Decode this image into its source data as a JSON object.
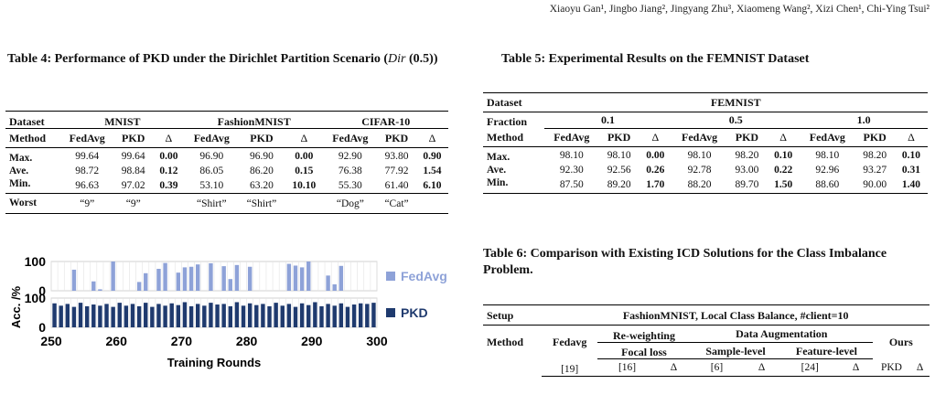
{
  "header": {
    "authors": "Xiaoyu Gan¹, Jingbo Jiang², Jingyang Zhu³, Xiaomeng Wang², Xizi Chen¹, Chi-Ying Tsui²"
  },
  "table4": {
    "caption_main": "Table 4: Performance of PKD under the Dirichlet Partition Scenario (",
    "caption_dir": "Dir",
    "caption_tail": " (0.5))",
    "groups": [
      "Dataset",
      "MNIST",
      "FashionMNIST",
      "CIFAR-10"
    ],
    "columns": [
      "Method",
      "FedAvg",
      "PKD",
      "Δ",
      "FedAvg",
      "PKD",
      "Δ",
      "FedAvg",
      "PKD",
      "Δ"
    ],
    "rows": [
      [
        "Max.",
        "99.64",
        "99.64",
        "0.00",
        "96.90",
        "96.90",
        "0.00",
        "92.90",
        "93.80",
        "0.90"
      ],
      [
        "Ave.",
        "98.72",
        "98.84",
        "0.12",
        "86.05",
        "86.20",
        "0.15",
        "76.38",
        "77.92",
        "1.54"
      ],
      [
        "Min.",
        "96.63",
        "97.02",
        "0.39",
        "53.10",
        "63.20",
        "10.10",
        "55.30",
        "61.40",
        "6.10"
      ]
    ],
    "worst": [
      "Worst",
      "“9”",
      "“9”",
      "",
      "“Shirt”",
      "“Shirt”",
      "",
      "“Dog”",
      "“Cat”",
      ""
    ]
  },
  "chart_data": {
    "type": "bar",
    "xlabel": "Training Rounds",
    "ylabel": "Acc. /%",
    "x_ticks": [
      250,
      260,
      270,
      280,
      290,
      300
    ],
    "xlim": [
      250,
      300
    ],
    "ylim": [
      0,
      100
    ],
    "y_ticks": [
      0,
      100
    ],
    "x": [
      250,
      251,
      252,
      253,
      254,
      255,
      256,
      257,
      258,
      259,
      260,
      261,
      262,
      263,
      264,
      265,
      266,
      267,
      268,
      269,
      270,
      271,
      272,
      273,
      274,
      275,
      276,
      277,
      278,
      279,
      280,
      281,
      282,
      283,
      284,
      285,
      286,
      287,
      288,
      289,
      290,
      291,
      292,
      293,
      294,
      295,
      296,
      297,
      298,
      299
    ],
    "series": [
      {
        "name": "FedAvg",
        "color": "#8ea2d8",
        "values": [
          0,
          0,
          0,
          72,
          0,
          0,
          32,
          5,
          0,
          100,
          0,
          0,
          0,
          30,
          60,
          0,
          75,
          95,
          0,
          62,
          80,
          82,
          90,
          0,
          94,
          0,
          84,
          40,
          88,
          0,
          82,
          0,
          0,
          0,
          0,
          0,
          92,
          86,
          80,
          100,
          0,
          0,
          52,
          22,
          85,
          0,
          0,
          0,
          0,
          0
        ]
      },
      {
        "name": "PKD",
        "color": "#1f3a6e",
        "values": [
          82,
          74,
          80,
          70,
          84,
          72,
          78,
          74,
          80,
          70,
          84,
          74,
          80,
          72,
          84,
          70,
          80,
          74,
          82,
          76,
          86,
          72,
          80,
          74,
          84,
          78,
          80,
          72,
          86,
          74,
          82,
          76,
          80,
          72,
          84,
          74,
          80,
          70,
          82,
          76,
          86,
          72,
          80,
          74,
          82,
          70,
          78,
          82,
          80,
          84
        ]
      }
    ]
  },
  "table5": {
    "caption": "Table 5: Experimental Results on the FEMNIST Dataset",
    "dataset_label": "Dataset",
    "dataset_name": "FEMNIST",
    "fraction_label": "Fraction",
    "fractions": [
      "0.1",
      "0.5",
      "1.0"
    ],
    "columns": [
      "Method",
      "FedAvg",
      "PKD",
      "Δ",
      "FedAvg",
      "PKD",
      "Δ",
      "FedAvg",
      "PKD",
      "Δ"
    ],
    "rows": [
      [
        "Max.",
        "98.10",
        "98.10",
        "0.00",
        "98.10",
        "98.20",
        "0.10",
        "98.10",
        "98.20",
        "0.10"
      ],
      [
        "Ave.",
        "92.30",
        "92.56",
        "0.26",
        "92.78",
        "93.00",
        "0.22",
        "92.96",
        "93.27",
        "0.31"
      ],
      [
        "Min.",
        "87.50",
        "89.20",
        "1.70",
        "88.20",
        "89.70",
        "1.50",
        "88.60",
        "90.00",
        "1.40"
      ]
    ]
  },
  "table6": {
    "caption": "Table 6: Comparison with Existing ICD Solutions for the Class Imbalance Problem.",
    "setup_label": "Setup",
    "setup_value": "FashionMNIST, Local Class Balance, #client=10",
    "method_label": "Method",
    "fedavg": "Fedavg",
    "reweighting": "Re-weighting",
    "focal_loss": "Focal loss",
    "data_aug": "Data Augmentation",
    "sample_level": "Sample-level",
    "feature_level": "Feature-level",
    "ours": "Ours",
    "refs": [
      "[19]",
      "[16]",
      "Δ",
      "[6]",
      "Δ",
      "[24]",
      "Δ",
      "PKD",
      "Δ"
    ]
  }
}
